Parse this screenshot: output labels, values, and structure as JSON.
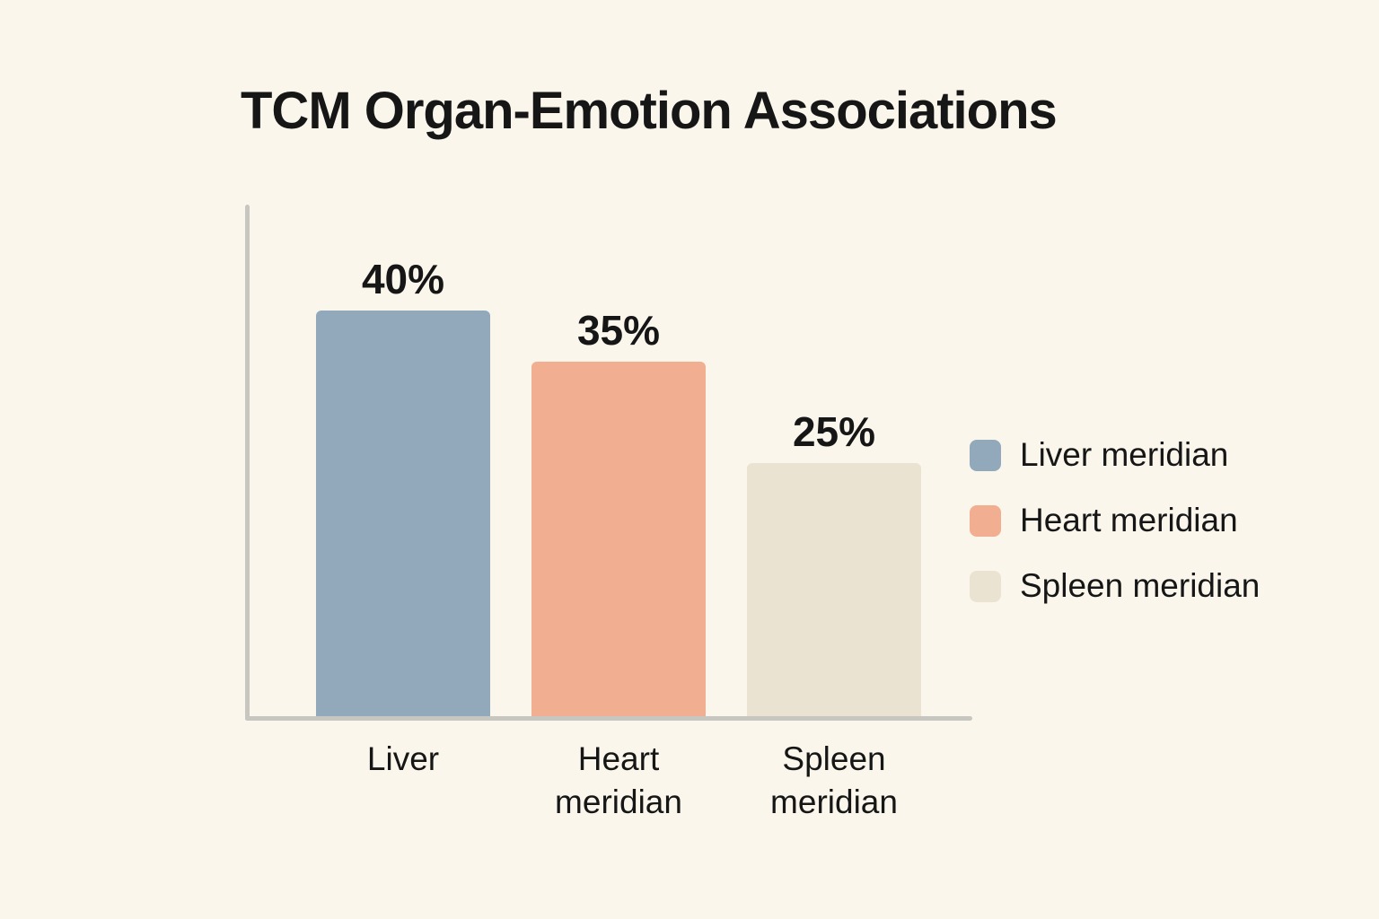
{
  "chart_data": {
    "type": "bar",
    "title": "TCM Organ-Emotion Associations",
    "categories": [
      "Liver",
      "Heart meridian",
      "Spleen meridian"
    ],
    "values": [
      40,
      35,
      25
    ],
    "value_labels": [
      "40%",
      "35%",
      "25%"
    ],
    "unit": "%",
    "ylim": [
      0,
      50
    ],
    "grid": false,
    "legend_position": "right",
    "series_colors": [
      "#92A9BC",
      "#F2AE90",
      "#EBE3D2"
    ],
    "legend": [
      {
        "label": "Liver meridian",
        "color": "#92A9BC"
      },
      {
        "label": "Heart meridian",
        "color": "#F2AE90"
      },
      {
        "label": "Spleen meridian",
        "color": "#EBE3D2"
      }
    ],
    "background_color": "#FAF6EC",
    "axis_color": "#C7C6C0",
    "text_color": "#161616"
  }
}
